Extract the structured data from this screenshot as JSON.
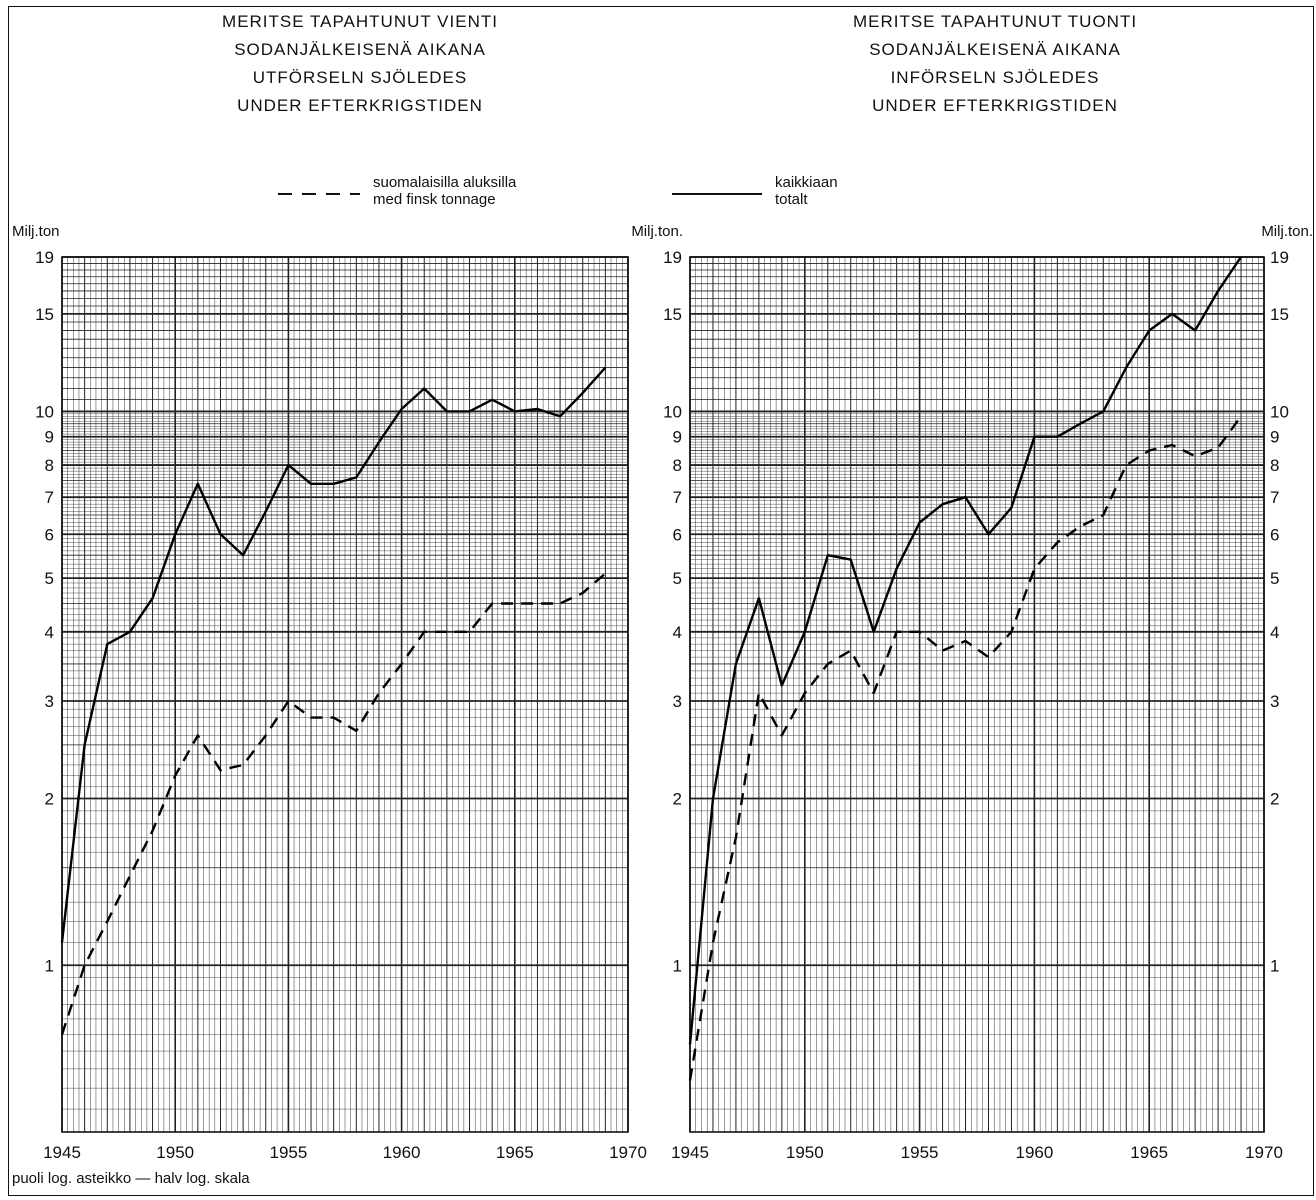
{
  "titles": {
    "left": [
      "MERITSE TAPAHTUNUT VIENTI",
      "SODANJÄLKEISENÄ AIKANA",
      "UTFÖRSELN SJÖLEDES",
      "UNDER EFTERKRIGSTIDEN"
    ],
    "right": [
      "MERITSE TAPAHTUNUT TUONTI",
      "SODANJÄLKEISENÄ AIKANA",
      "INFÖRSELN SJÖLEDES",
      "UNDER EFTERKRIGSTIDEN"
    ]
  },
  "legend": {
    "dashed": [
      "suomalaisilla aluksilla",
      "med finsk tonnage"
    ],
    "solid": [
      "kaikkiaan",
      "totalt"
    ]
  },
  "footnote": "puoli log. asteikko — halv log. skala",
  "chart_data": [
    {
      "type": "line",
      "title": "MERITSE TAPAHTUNUT VIENTI / UTFÖRSELN SJÖLEDES",
      "ylabel": "Milj.ton",
      "yscale": "log",
      "xlim": [
        1945,
        1970
      ],
      "ylim": [
        0.5,
        19
      ],
      "x_ticks": [
        "1945",
        "1950",
        "1955",
        "1960",
        "1965",
        "1970"
      ],
      "y_ticks": [
        "1",
        "2",
        "3",
        "4",
        "5",
        "6",
        "7",
        "8",
        "9",
        "10",
        "15",
        "19"
      ],
      "y_tick_values": [
        1,
        2,
        3,
        4,
        5,
        6,
        7,
        8,
        9,
        10,
        15,
        19
      ],
      "grid": true,
      "series": [
        {
          "name": "kaikkiaan / totalt",
          "style": "solid",
          "x": [
            1945,
            1946,
            1947,
            1948,
            1949,
            1950,
            1951,
            1952,
            1953,
            1954,
            1955,
            1956,
            1957,
            1958,
            1959,
            1960,
            1961,
            1962,
            1963,
            1964,
            1965,
            1966,
            1967,
            1968,
            1969
          ],
          "y": [
            1.1,
            2.5,
            3.8,
            4.0,
            4.6,
            6.0,
            7.4,
            6.0,
            5.5,
            6.6,
            8.0,
            7.4,
            7.4,
            7.6,
            8.8,
            10.1,
            11.0,
            10.0,
            10.0,
            10.5,
            10.0,
            10.1,
            9.8,
            10.8,
            12.0
          ]
        },
        {
          "name": "suomalaisilla aluksilla / med finsk tonnage",
          "style": "dashed",
          "x": [
            1945,
            1946,
            1947,
            1948,
            1949,
            1950,
            1951,
            1952,
            1953,
            1954,
            1955,
            1956,
            1957,
            1958,
            1959,
            1960,
            1961,
            1962,
            1963,
            1964,
            1965,
            1966,
            1967,
            1968,
            1969
          ],
          "y": [
            0.75,
            1.0,
            1.2,
            1.45,
            1.75,
            2.2,
            2.6,
            2.25,
            2.3,
            2.6,
            3.0,
            2.8,
            2.8,
            2.65,
            3.1,
            3.5,
            4.0,
            4.0,
            4.0,
            4.5,
            4.5,
            4.5,
            4.5,
            4.7,
            5.1
          ]
        }
      ]
    },
    {
      "type": "line",
      "title": "MERITSE TAPAHTUNUT TUONTI / INFÖRSELN SJÖLEDES",
      "ylabel": "Milj.ton.",
      "yscale": "log",
      "xlim": [
        1945,
        1970
      ],
      "ylim": [
        0.5,
        19
      ],
      "x_ticks": [
        "1945",
        "1950",
        "1955",
        "1960",
        "1965",
        "1970"
      ],
      "y_ticks": [
        "1",
        "2",
        "3",
        "4",
        "5",
        "6",
        "7",
        "8",
        "9",
        "10",
        "15",
        "19"
      ],
      "y_tick_values": [
        1,
        2,
        3,
        4,
        5,
        6,
        7,
        8,
        9,
        10,
        15,
        19
      ],
      "grid": true,
      "series": [
        {
          "name": "kaikkiaan / totalt",
          "style": "solid",
          "x": [
            1945,
            1946,
            1947,
            1948,
            1949,
            1950,
            1951,
            1952,
            1953,
            1954,
            1955,
            1956,
            1957,
            1958,
            1959,
            1960,
            1961,
            1962,
            1963,
            1964,
            1965,
            1966,
            1967,
            1968,
            1969
          ],
          "y": [
            0.72,
            2.0,
            3.5,
            4.6,
            3.2,
            4.0,
            5.5,
            5.4,
            4.0,
            5.2,
            6.3,
            6.8,
            7.0,
            6.0,
            6.7,
            9.0,
            9.0,
            9.5,
            10.0,
            12.0,
            14.0,
            15.0,
            14.0,
            16.5,
            19.0
          ]
        },
        {
          "name": "suomalaisilla aluksilla / med finsk tonnage",
          "style": "dashed",
          "x": [
            1945,
            1946,
            1947,
            1948,
            1949,
            1950,
            1951,
            1952,
            1953,
            1954,
            1955,
            1956,
            1957,
            1958,
            1959,
            1960,
            1961,
            1962,
            1963,
            1964,
            1965,
            1966,
            1967,
            1968,
            1969
          ],
          "y": [
            0.62,
            1.1,
            1.7,
            3.1,
            2.6,
            3.1,
            3.5,
            3.7,
            3.1,
            4.0,
            4.0,
            3.7,
            3.85,
            3.6,
            4.0,
            5.2,
            5.8,
            6.2,
            6.5,
            8.0,
            8.5,
            8.7,
            8.3,
            8.6,
            9.8
          ]
        }
      ]
    }
  ]
}
